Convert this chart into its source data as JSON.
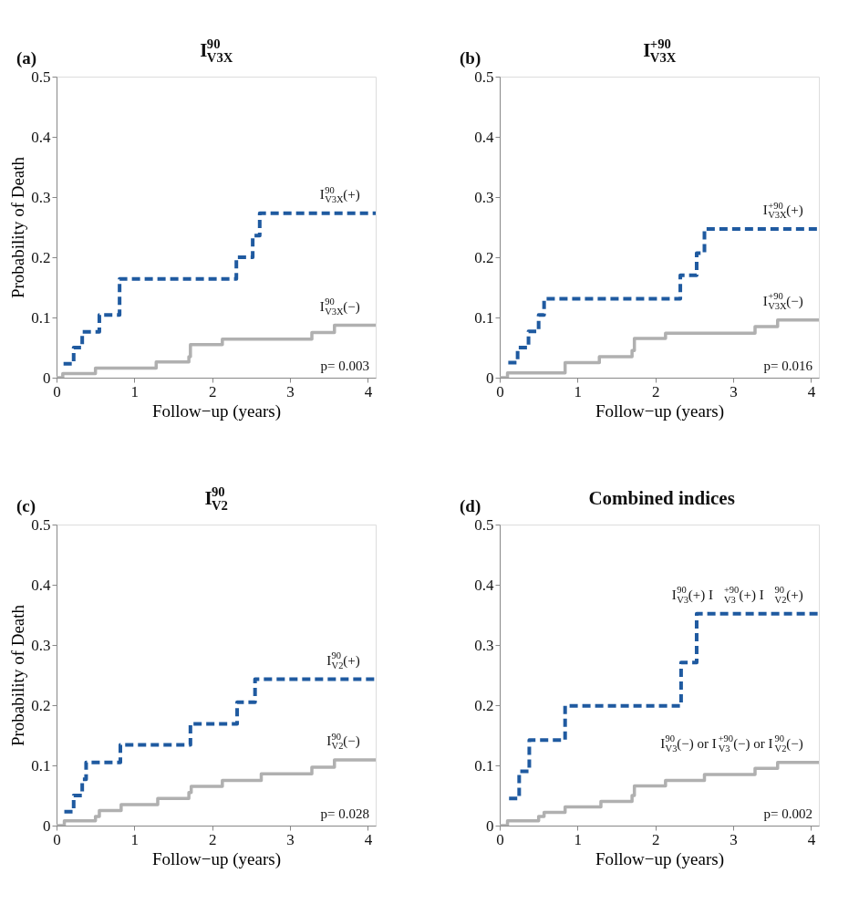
{
  "chart_data": [
    {
      "type": "step",
      "title": "I$^{90}$$_{V3X}$",
      "xlabel": "Follow−up (years)",
      "ylabel": "Probability of Death",
      "xlim": [
        0,
        4.1
      ],
      "ylim": [
        0,
        0.5
      ],
      "xticks": [
        0,
        1,
        2,
        3,
        4
      ],
      "yticks": [
        0,
        0.1,
        0.2,
        0.3,
        0.4,
        0.5
      ],
      "grid": false,
      "annotations": [
        "(a)",
        "p= 0.003"
      ],
      "series": [
        {
          "name": "I$^{90}$$_{V3X}$(+)",
          "color": "#1f5aa0",
          "line_style": "dashed",
          "x": [
            0.09,
            0.22,
            0.33,
            0.55,
            0.81,
            2.31,
            2.52,
            2.61,
            4.1
          ],
          "values": [
            0.023,
            0.05,
            0.076,
            0.104,
            0.164,
            0.2,
            0.236,
            0.273,
            0.273
          ]
        },
        {
          "name": "I$^{90}$$_{V3X}$(−)",
          "color": "#b0b0b0",
          "line_style": "solid",
          "x": [
            0,
            0.08,
            0.5,
            1.28,
            1.7,
            1.72,
            2.13,
            3.28,
            3.57,
            4.1
          ],
          "values": [
            0,
            0.007,
            0.016,
            0.026,
            0.035,
            0.055,
            0.064,
            0.075,
            0.087,
            0.087
          ]
        }
      ]
    },
    {
      "type": "step",
      "title": "I$^{+90}$$_{V3X}$",
      "xlabel": "Follow−up (years)",
      "xlim": [
        0,
        4.1
      ],
      "ylim": [
        0,
        0.5
      ],
      "xticks": [
        0,
        1,
        2,
        3,
        4
      ],
      "yticks": [
        0,
        0.1,
        0.2,
        0.3,
        0.4,
        0.5
      ],
      "grid": false,
      "annotations": [
        "(b)",
        "p= 0.016"
      ],
      "series": [
        {
          "name": "I$^{+90}$$_{V3X}$(+)",
          "color": "#1f5aa0",
          "line_style": "dashed",
          "x": [
            0.11,
            0.23,
            0.37,
            0.5,
            0.57,
            2.32,
            2.53,
            2.63,
            4.1
          ],
          "values": [
            0.025,
            0.05,
            0.077,
            0.104,
            0.131,
            0.17,
            0.207,
            0.247,
            0.247
          ]
        },
        {
          "name": "I$^{+90}$$_{V3X}$(−)",
          "color": "#b0b0b0",
          "line_style": "solid",
          "x": [
            0,
            0.1,
            0.84,
            1.28,
            1.7,
            1.73,
            2.13,
            3.28,
            3.57,
            4.1
          ],
          "values": [
            0,
            0.008,
            0.025,
            0.035,
            0.045,
            0.065,
            0.074,
            0.085,
            0.096,
            0.096
          ]
        }
      ]
    },
    {
      "type": "step",
      "title": "I$^{90}$$_{V2}$",
      "xlabel": "Follow−up (years)",
      "ylabel": "Probability of Death",
      "xlim": [
        0,
        4.1
      ],
      "ylim": [
        0,
        0.5
      ],
      "xticks": [
        0,
        1,
        2,
        3,
        4
      ],
      "yticks": [
        0,
        0.1,
        0.2,
        0.3,
        0.4,
        0.5
      ],
      "grid": false,
      "annotations": [
        "(c)",
        "p= 0.028"
      ],
      "series": [
        {
          "name": "I$^{90}$$_{V2}$(+)",
          "color": "#1f5aa0",
          "line_style": "dashed",
          "x": [
            0.1,
            0.22,
            0.33,
            0.38,
            0.82,
            1.72,
            2.32,
            2.55,
            4.1
          ],
          "values": [
            0.023,
            0.05,
            0.077,
            0.105,
            0.134,
            0.169,
            0.205,
            0.243,
            0.243
          ]
        },
        {
          "name": "I$^{90}$$_{V2}$(−)",
          "color": "#b0b0b0",
          "line_style": "solid",
          "x": [
            0,
            0.1,
            0.5,
            0.55,
            0.83,
            1.3,
            1.7,
            1.73,
            2.13,
            2.63,
            3.28,
            3.57,
            4.1
          ],
          "values": [
            0,
            0.008,
            0.015,
            0.025,
            0.035,
            0.045,
            0.055,
            0.065,
            0.075,
            0.086,
            0.097,
            0.109,
            0.109
          ]
        }
      ]
    },
    {
      "type": "step",
      "title": "Combined indices",
      "xlabel": "Follow−up (years)",
      "xlim": [
        0,
        4.1
      ],
      "ylim": [
        0,
        0.5
      ],
      "xticks": [
        0,
        1,
        2,
        3,
        4
      ],
      "yticks": [
        0,
        0.1,
        0.2,
        0.3,
        0.4,
        0.5
      ],
      "grid": false,
      "annotations": [
        "(d)",
        "p= 0.002"
      ],
      "series": [
        {
          "name": "I$^{90}$$_{V3}$(+)    I$^{+90}$$_{V3}$(+)    I$^{90}$$_{V2}$(+)",
          "color": "#1f5aa0",
          "line_style": "dashed",
          "x": [
            0.12,
            0.25,
            0.38,
            0.84,
            2.33,
            2.53,
            4.1
          ],
          "values": [
            0.045,
            0.09,
            0.142,
            0.199,
            0.271,
            0.352,
            0.352
          ]
        },
        {
          "name": "I$^{90}$$_{V3}$(−) or I$^{+90}$$_{V3}$(−) or I$^{90}$$_{V2}$(−)",
          "color": "#b0b0b0",
          "line_style": "solid",
          "x": [
            0,
            0.1,
            0.5,
            0.57,
            0.84,
            1.3,
            1.7,
            1.73,
            2.13,
            2.63,
            3.28,
            3.57,
            4.1
          ],
          "values": [
            0,
            0.008,
            0.015,
            0.022,
            0.031,
            0.04,
            0.05,
            0.066,
            0.075,
            0.085,
            0.095,
            0.105,
            0.105
          ]
        }
      ]
    }
  ]
}
